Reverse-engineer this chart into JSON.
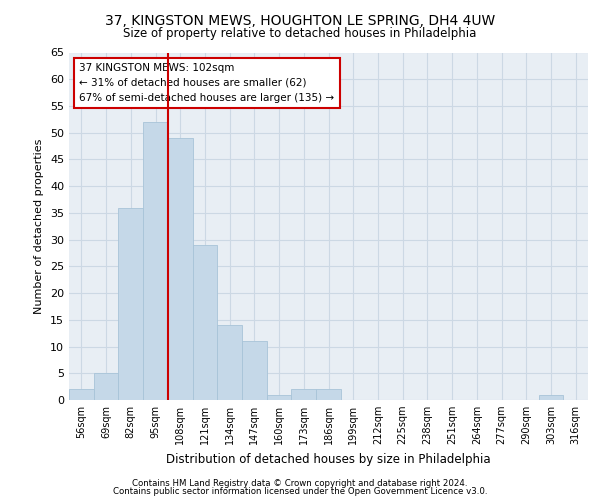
{
  "title1": "37, KINGSTON MEWS, HOUGHTON LE SPRING, DH4 4UW",
  "title2": "Size of property relative to detached houses in Philadelphia",
  "xlabel": "Distribution of detached houses by size in Philadelphia",
  "ylabel": "Number of detached properties",
  "bins": [
    "56sqm",
    "69sqm",
    "82sqm",
    "95sqm",
    "108sqm",
    "121sqm",
    "134sqm",
    "147sqm",
    "160sqm",
    "173sqm",
    "186sqm",
    "199sqm",
    "212sqm",
    "225sqm",
    "238sqm",
    "251sqm",
    "264sqm",
    "277sqm",
    "290sqm",
    "303sqm",
    "316sqm"
  ],
  "values": [
    2,
    5,
    36,
    52,
    49,
    29,
    14,
    11,
    1,
    2,
    2,
    0,
    0,
    0,
    0,
    0,
    0,
    0,
    0,
    1,
    0
  ],
  "bar_color": "#c5d8e8",
  "bar_edge_color": "#a8c4d8",
  "annotation_title": "37 KINGSTON MEWS: 102sqm",
  "annotation_line1": "← 31% of detached houses are smaller (62)",
  "annotation_line2": "67% of semi-detached houses are larger (135) →",
  "annotation_box_color": "#ffffff",
  "annotation_box_edge": "#cc0000",
  "red_line_color": "#cc0000",
  "grid_color": "#ccd8e4",
  "background_color": "#e8eef4",
  "footer1": "Contains HM Land Registry data © Crown copyright and database right 2024.",
  "footer2": "Contains public sector information licensed under the Open Government Licence v3.0.",
  "ylim": [
    0,
    65
  ],
  "yticks": [
    0,
    5,
    10,
    15,
    20,
    25,
    30,
    35,
    40,
    45,
    50,
    55,
    60,
    65
  ],
  "red_line_x": 3.5
}
